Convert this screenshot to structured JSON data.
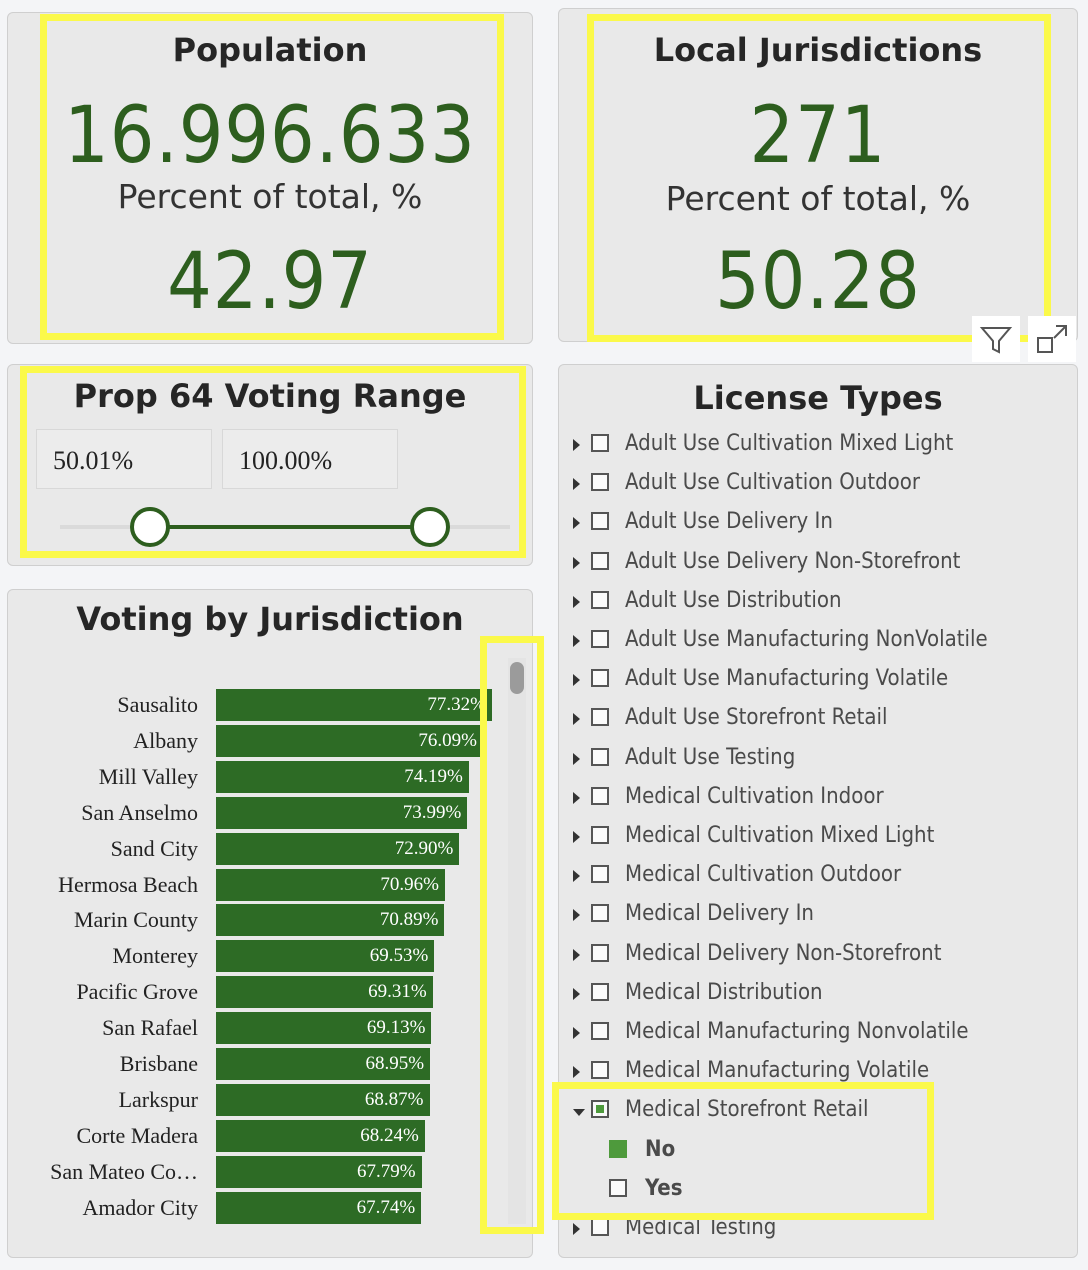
{
  "population": {
    "title": "Population",
    "value": "16.996.633",
    "percent_label": "Percent of total, %",
    "percent_value": "42.97"
  },
  "jurisdictions": {
    "title": "Local Jurisdictions",
    "value": "271",
    "percent_label": "Percent of total, %",
    "percent_value": "50.28"
  },
  "voting_range": {
    "title": "Prop 64 Voting Range",
    "min": "50.01%",
    "max": "100.00%",
    "min_fraction": 0.5001,
    "max_fraction": 1.0
  },
  "voting_chart": {
    "title": "Voting by Jurisdiction",
    "rows": [
      {
        "name": "Sausalito",
        "label": "77.32%",
        "value": 77.32
      },
      {
        "name": "Albany",
        "label": "76.09%",
        "value": 76.09
      },
      {
        "name": "Mill Valley",
        "label": "74.19%",
        "value": 74.19
      },
      {
        "name": "San Anselmo",
        "label": "73.99%",
        "value": 73.99
      },
      {
        "name": "Sand City",
        "label": "72.90%",
        "value": 72.9
      },
      {
        "name": "Hermosa Beach",
        "label": "70.96%",
        "value": 70.96
      },
      {
        "name": "Marin County",
        "label": "70.89%",
        "value": 70.89
      },
      {
        "name": "Monterey",
        "label": "69.53%",
        "value": 69.53
      },
      {
        "name": "Pacific Grove",
        "label": "69.31%",
        "value": 69.31
      },
      {
        "name": "San Rafael",
        "label": "69.13%",
        "value": 69.13
      },
      {
        "name": "Brisbane",
        "label": "68.95%",
        "value": 68.95
      },
      {
        "name": "Larkspur",
        "label": "68.87%",
        "value": 68.87
      },
      {
        "name": "Corte Madera",
        "label": "68.24%",
        "value": 68.24
      },
      {
        "name": "San Mateo Co…",
        "label": "67.79%",
        "value": 67.79
      },
      {
        "name": "Amador City",
        "label": "67.74%",
        "value": 67.74
      }
    ]
  },
  "license_types": {
    "title": "License Types",
    "items": [
      {
        "label": "Adult Use Cultivation Mixed Light",
        "state": "unchecked",
        "expanded": false
      },
      {
        "label": "Adult Use Cultivation Outdoor",
        "state": "unchecked",
        "expanded": false
      },
      {
        "label": "Adult Use Delivery In",
        "state": "unchecked",
        "expanded": false
      },
      {
        "label": "Adult Use Delivery Non-Storefront",
        "state": "unchecked",
        "expanded": false
      },
      {
        "label": "Adult Use Distribution",
        "state": "unchecked",
        "expanded": false
      },
      {
        "label": "Adult Use Manufacturing NonVolatile",
        "state": "unchecked",
        "expanded": false
      },
      {
        "label": "Adult Use Manufacturing Volatile",
        "state": "unchecked",
        "expanded": false
      },
      {
        "label": "Adult Use Storefront Retail",
        "state": "unchecked",
        "expanded": false
      },
      {
        "label": "Adult Use Testing",
        "state": "unchecked",
        "expanded": false
      },
      {
        "label": "Medical Cultivation Indoor",
        "state": "unchecked",
        "expanded": false
      },
      {
        "label": "Medical Cultivation Mixed Light",
        "state": "unchecked",
        "expanded": false
      },
      {
        "label": "Medical Cultivation Outdoor",
        "state": "unchecked",
        "expanded": false
      },
      {
        "label": "Medical Delivery In",
        "state": "unchecked",
        "expanded": false
      },
      {
        "label": "Medical Delivery Non-Storefront",
        "state": "unchecked",
        "expanded": false
      },
      {
        "label": "Medical Distribution",
        "state": "unchecked",
        "expanded": false
      },
      {
        "label": "Medical Manufacturing Nonvolatile",
        "state": "unchecked",
        "expanded": false
      },
      {
        "label": "Medical Manufacturing Volatile",
        "state": "unchecked",
        "expanded": false
      },
      {
        "label": "Medical Storefront Retail",
        "state": "partial",
        "expanded": true,
        "children": [
          {
            "label": "No",
            "state": "checked"
          },
          {
            "label": "Yes",
            "state": "unchecked"
          }
        ]
      },
      {
        "label": "Medical Testing",
        "state": "unchecked",
        "expanded": false
      }
    ]
  },
  "icons": {
    "filter": "filter-icon",
    "focus": "focus-mode-icon"
  },
  "colors": {
    "accent_green": "#2d5e1e",
    "bar_green": "#2d6b25",
    "highlight": "#fbf94a",
    "check_green": "#4e9a3c"
  }
}
